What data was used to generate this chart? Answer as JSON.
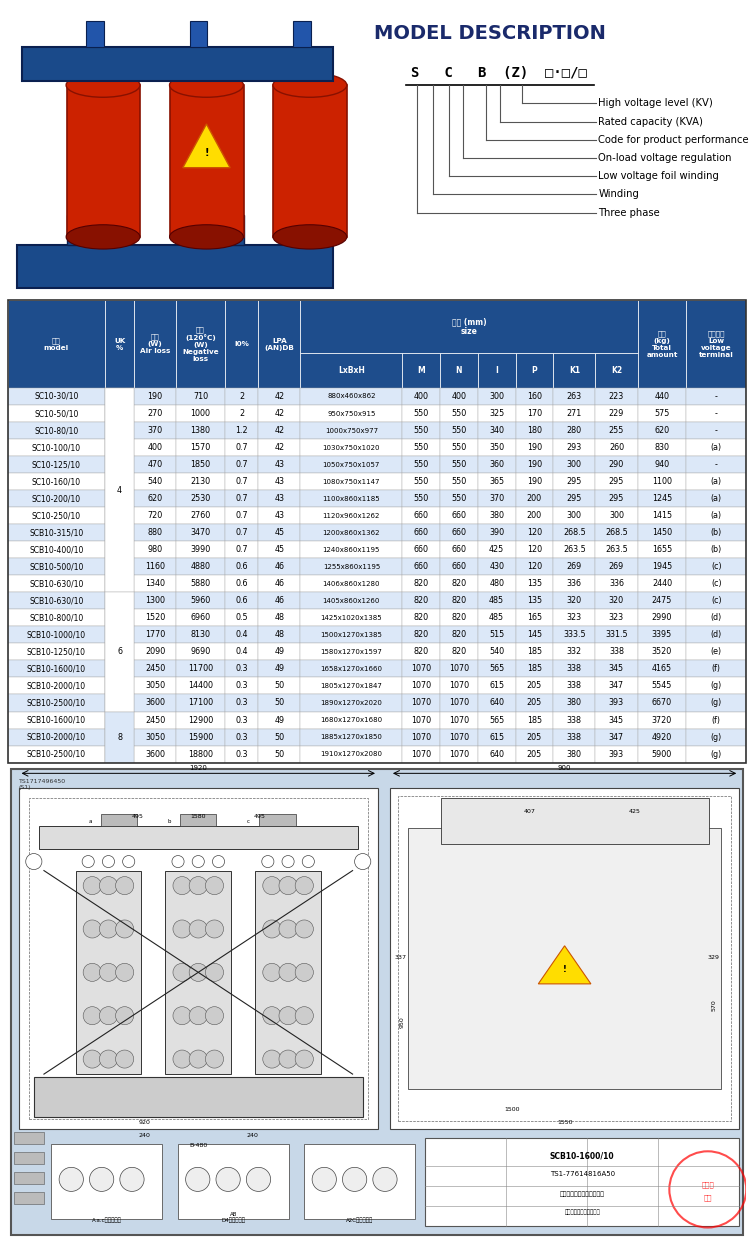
{
  "title_model": "MODEL DESCRIPTION",
  "model_labels": [
    "High voltage level (KV)",
    "Rated capacity (KVA)",
    "Code for product performance",
    "On-load voltage regulation",
    "Low voltage foil winding",
    "Winding",
    "Three phase"
  ],
  "table_header_bg": "#1e4d8c",
  "table_row_alt": "#dce8f8",
  "table_row_white": "#ffffff",
  "rows": [
    [
      "SC10-30/10",
      "",
      "190",
      "710",
      "2",
      "42",
      "880x460x862",
      "400",
      "400",
      "300",
      "160",
      "263",
      "223",
      "440",
      "-"
    ],
    [
      "SC10-50/10",
      "",
      "270",
      "1000",
      "2",
      "42",
      "950x750x915",
      "550",
      "550",
      "325",
      "170",
      "271",
      "229",
      "575",
      "-"
    ],
    [
      "SC10-80/10",
      "",
      "370",
      "1380",
      "1.2",
      "42",
      "1000x750x977",
      "550",
      "550",
      "340",
      "180",
      "280",
      "255",
      "620",
      "-"
    ],
    [
      "SC10-100/10",
      "",
      "400",
      "1570",
      "0.7",
      "42",
      "1030x750x1020",
      "550",
      "550",
      "350",
      "190",
      "293",
      "260",
      "830",
      "(a)"
    ],
    [
      "SC10-125/10",
      "",
      "470",
      "1850",
      "0.7",
      "43",
      "1050x750x1057",
      "550",
      "550",
      "360",
      "190",
      "300",
      "290",
      "940",
      "-"
    ],
    [
      "SC10-160/10",
      "4",
      "540",
      "2130",
      "0.7",
      "43",
      "1080x750x1147",
      "550",
      "550",
      "365",
      "190",
      "295",
      "295",
      "1100",
      "(a)"
    ],
    [
      "SC10-200/10",
      "",
      "620",
      "2530",
      "0.7",
      "43",
      "1100x860x1185",
      "550",
      "550",
      "370",
      "200",
      "295",
      "295",
      "1245",
      "(a)"
    ],
    [
      "SC10-250/10",
      "",
      "720",
      "2760",
      "0.7",
      "43",
      "1120x960x1262",
      "660",
      "660",
      "380",
      "200",
      "300",
      "300",
      "1415",
      "(a)"
    ],
    [
      "SCB10-315/10",
      "",
      "880",
      "3470",
      "0.7",
      "45",
      "1200x860x1362",
      "660",
      "660",
      "390",
      "120",
      "268.5",
      "268.5",
      "1450",
      "(b)"
    ],
    [
      "SCB10-400/10",
      "",
      "980",
      "3990",
      "0.7",
      "45",
      "1240x860x1195",
      "660",
      "660",
      "425",
      "120",
      "263.5",
      "263.5",
      "1655",
      "(b)"
    ],
    [
      "SCB10-500/10",
      "",
      "1160",
      "4880",
      "0.6",
      "46",
      "1255x860x1195",
      "660",
      "660",
      "430",
      "120",
      "269",
      "269",
      "1945",
      "(c)"
    ],
    [
      "SCB10-630/10",
      "",
      "1340",
      "5880",
      "0.6",
      "46",
      "1406x860x1280",
      "820",
      "820",
      "480",
      "135",
      "336",
      "336",
      "2440",
      "(c)"
    ],
    [
      "SCB10-630/10",
      "",
      "1300",
      "5960",
      "0.6",
      "46",
      "1405x860x1260",
      "820",
      "820",
      "485",
      "135",
      "320",
      "320",
      "2475",
      "(c)"
    ],
    [
      "SCB10-800/10",
      "",
      "1520",
      "6960",
      "0.5",
      "48",
      "1425x1020x1385",
      "820",
      "820",
      "485",
      "165",
      "323",
      "323",
      "2990",
      "(d)"
    ],
    [
      "SCB10-1000/10",
      "",
      "1770",
      "8130",
      "0.4",
      "48",
      "1500x1270x1385",
      "820",
      "820",
      "515",
      "145",
      "333.5",
      "331.5",
      "3395",
      "(d)"
    ],
    [
      "SCB10-1250/10",
      "6",
      "2090",
      "9690",
      "0.4",
      "49",
      "1580x1270x1597",
      "820",
      "820",
      "540",
      "185",
      "332",
      "338",
      "3520",
      "(e)"
    ],
    [
      "SCB10-1600/10",
      "",
      "2450",
      "11700",
      "0.3",
      "49",
      "1658x1270x1660",
      "1070",
      "1070",
      "565",
      "185",
      "338",
      "345",
      "4165",
      "(f)"
    ],
    [
      "SCB10-2000/10",
      "",
      "3050",
      "14400",
      "0.3",
      "50",
      "1805x1270x1847",
      "1070",
      "1070",
      "615",
      "205",
      "338",
      "347",
      "5545",
      "(g)"
    ],
    [
      "SCB10-2500/10",
      "",
      "3600",
      "17100",
      "0.3",
      "50",
      "1890x1270x2020",
      "1070",
      "1070",
      "640",
      "205",
      "380",
      "393",
      "6670",
      "(g)"
    ],
    [
      "SCB10-1600/10",
      "",
      "2450",
      "12900",
      "0.3",
      "49",
      "1680x1270x1680",
      "1070",
      "1070",
      "565",
      "185",
      "338",
      "345",
      "3720",
      "(f)"
    ],
    [
      "SCB10-2000/10",
      "8",
      "3050",
      "15900",
      "0.3",
      "50",
      "1885x1270x1850",
      "1070",
      "1070",
      "615",
      "205",
      "338",
      "347",
      "4920",
      "(g)"
    ],
    [
      "SCB10-2500/10",
      "",
      "3600",
      "18800",
      "0.3",
      "50",
      "1910x1270x2080",
      "1070",
      "1070",
      "640",
      "205",
      "380",
      "393",
      "5900",
      "(g)"
    ]
  ],
  "diagram_bg": "#c8d8e8"
}
